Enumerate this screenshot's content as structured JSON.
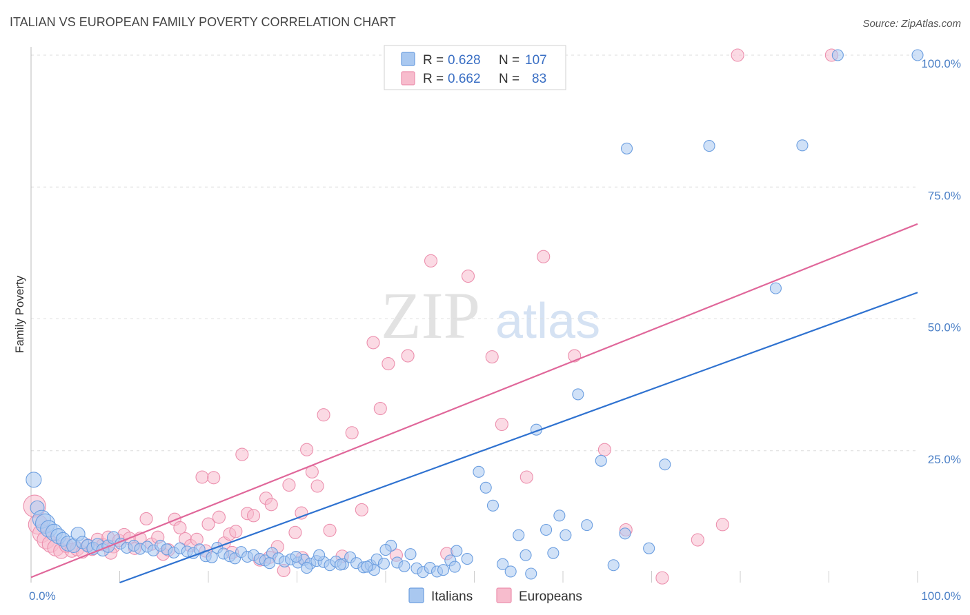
{
  "header": {
    "title": "ITALIAN VS EUROPEAN FAMILY POVERTY CORRELATION CHART",
    "source": "Source: ZipAtlas.com"
  },
  "watermark": {
    "zip": "ZIP",
    "atlas": "atlas"
  },
  "colors": {
    "italians_fill": "#a9c8f0",
    "italians_stroke": "#6b9ee0",
    "italians_line": "#2f72d0",
    "europeans_fill": "#f7bccd",
    "europeans_stroke": "#ec8fad",
    "europeans_line": "#e0679a",
    "grid": "#dcdcdc",
    "tick_label": "#4a7fc6"
  },
  "legend": {
    "rows": [
      {
        "r_label": "R =",
        "r_value": "0.628",
        "n_label": "N =",
        "n_value": "107"
      },
      {
        "r_label": "R =",
        "r_value": "0.662",
        "n_label": "N =",
        "n_value": "83"
      }
    ]
  },
  "bottom_legend": {
    "italians": "Italians",
    "europeans": "Europeans"
  },
  "chart_data": {
    "type": "scatter",
    "title": "ITALIAN VS EUROPEAN FAMILY POVERTY CORRELATION CHART",
    "xlabel": "",
    "ylabel": "Family Poverty",
    "xlim": [
      0,
      100
    ],
    "ylim": [
      0,
      100
    ],
    "x_tick_labels": [
      "0.0%",
      "100.0%"
    ],
    "y_ticks": [
      25,
      50,
      75,
      100
    ],
    "y_tick_labels": [
      "25.0%",
      "50.0%",
      "75.0%",
      "100.0%"
    ],
    "grid": true,
    "legend_position": "top-center",
    "series": [
      {
        "name": "Italians",
        "r": 0.628,
        "n": 107,
        "trend": {
          "x0": 10,
          "y0": 0,
          "x1": 100,
          "y1": 55
        },
        "points": [
          [
            0.3,
            19.5,
            11
          ],
          [
            0.7,
            14.2,
            10
          ],
          [
            1.2,
            12.0,
            13
          ],
          [
            1.6,
            11.2,
            14
          ],
          [
            2.0,
            10.2,
            12
          ],
          [
            2.6,
            9.5,
            12
          ],
          [
            3.1,
            8.8,
            11
          ],
          [
            3.6,
            8.2,
            10
          ],
          [
            4.2,
            7.4,
            11
          ],
          [
            4.8,
            7.0,
            10
          ],
          [
            5.3,
            9.2,
            10
          ],
          [
            5.8,
            7.6,
            9
          ],
          [
            6.4,
            7.0,
            9
          ],
          [
            7.0,
            6.5,
            9
          ],
          [
            7.5,
            7.2,
            9
          ],
          [
            8.1,
            6.2,
            9
          ],
          [
            8.7,
            6.9,
            9
          ],
          [
            9.3,
            8.5,
            9
          ],
          [
            10.1,
            7.4,
            8
          ],
          [
            10.8,
            6.6,
            8
          ],
          [
            11.6,
            7.0,
            8
          ],
          [
            12.3,
            6.4,
            8
          ],
          [
            13.1,
            6.8,
            8
          ],
          [
            13.8,
            6.1,
            8
          ],
          [
            14.6,
            7.0,
            8
          ],
          [
            15.3,
            6.3,
            8
          ],
          [
            16.1,
            5.7,
            8
          ],
          [
            16.8,
            6.5,
            8
          ],
          [
            17.6,
            5.9,
            8
          ],
          [
            18.3,
            5.6,
            8
          ],
          [
            19.0,
            6.3,
            8
          ],
          [
            19.7,
            5.0,
            8
          ],
          [
            20.4,
            4.8,
            8
          ],
          [
            21.0,
            6.6,
            8
          ],
          [
            21.7,
            5.5,
            8
          ],
          [
            22.4,
            5.0,
            8
          ],
          [
            23.0,
            4.6,
            8
          ],
          [
            23.7,
            5.8,
            8
          ],
          [
            24.4,
            4.9,
            8
          ],
          [
            25.1,
            5.2,
            8
          ],
          [
            25.8,
            4.5,
            8
          ],
          [
            26.4,
            4.2,
            8
          ],
          [
            27.2,
            5.6,
            8
          ],
          [
            27.9,
            4.6,
            8
          ],
          [
            28.6,
            4.0,
            8
          ],
          [
            29.3,
            4.4,
            8
          ],
          [
            30.1,
            3.8,
            8
          ],
          [
            30.8,
            4.3,
            8
          ],
          [
            31.5,
            3.6,
            8
          ],
          [
            32.2,
            4.1,
            8
          ],
          [
            33.0,
            3.9,
            8
          ],
          [
            33.7,
            3.3,
            8
          ],
          [
            34.4,
            4.0,
            8
          ],
          [
            35.2,
            3.5,
            8
          ],
          [
            36.0,
            4.8,
            8
          ],
          [
            36.7,
            3.7,
            8
          ],
          [
            37.5,
            2.9,
            8
          ],
          [
            38.3,
            3.3,
            8
          ],
          [
            39.0,
            4.4,
            8
          ],
          [
            39.8,
            3.6,
            8
          ],
          [
            40.6,
            7.0,
            8
          ],
          [
            41.3,
            3.8,
            8
          ],
          [
            42.1,
            3.1,
            8
          ],
          [
            42.8,
            5.4,
            8
          ],
          [
            43.5,
            2.7,
            8
          ],
          [
            44.2,
            2.0,
            8
          ],
          [
            45.0,
            2.8,
            8
          ],
          [
            45.8,
            2.1,
            8
          ],
          [
            46.5,
            2.4,
            8
          ],
          [
            47.3,
            4.2,
            8
          ],
          [
            48.0,
            6.0,
            8
          ],
          [
            32.5,
            5.2,
            8
          ],
          [
            34.9,
            3.4,
            8
          ],
          [
            31.1,
            2.8,
            8
          ],
          [
            38.7,
            2.4,
            8
          ],
          [
            40.0,
            6.2,
            8
          ],
          [
            47.8,
            3.0,
            8
          ],
          [
            49.2,
            4.5,
            8
          ],
          [
            50.5,
            21.0,
            8
          ],
          [
            51.3,
            18.0,
            8
          ],
          [
            52.1,
            14.6,
            8
          ],
          [
            53.2,
            3.5,
            8
          ],
          [
            54.1,
            2.1,
            8
          ],
          [
            55.0,
            9.0,
            8
          ],
          [
            55.8,
            5.2,
            8
          ],
          [
            56.4,
            1.7,
            8
          ],
          [
            57.0,
            29.0,
            8
          ],
          [
            58.1,
            10.0,
            8
          ],
          [
            58.9,
            5.6,
            8
          ],
          [
            59.6,
            12.7,
            8
          ],
          [
            60.3,
            9.0,
            8
          ],
          [
            61.7,
            35.7,
            8
          ],
          [
            62.7,
            10.9,
            8
          ],
          [
            64.3,
            23.1,
            8
          ],
          [
            65.7,
            3.3,
            8
          ],
          [
            67.0,
            9.3,
            8
          ],
          [
            67.2,
            82.3,
            8
          ],
          [
            69.7,
            6.5,
            8
          ],
          [
            71.5,
            22.4,
            8
          ],
          [
            76.5,
            82.8,
            8
          ],
          [
            84.0,
            55.8,
            8
          ],
          [
            87.0,
            82.9,
            8
          ],
          [
            91.0,
            100.0,
            8
          ],
          [
            100.0,
            100.0,
            8
          ],
          [
            37.9,
            3.0,
            8
          ],
          [
            26.9,
            3.7,
            8
          ],
          [
            29.9,
            4.9,
            8
          ]
        ]
      },
      {
        "name": "Europeans",
        "r": 0.662,
        "n": 83,
        "trend": {
          "x0": 0,
          "y0": 1,
          "x1": 100,
          "y1": 68
        },
        "points": [
          [
            0.4,
            14.5,
            16
          ],
          [
            0.8,
            11.0,
            14
          ],
          [
            1.2,
            9.3,
            13
          ],
          [
            1.7,
            8.1,
            13
          ],
          [
            2.2,
            7.3,
            12
          ],
          [
            2.8,
            6.6,
            12
          ],
          [
            3.4,
            6.0,
            11
          ],
          [
            4.0,
            7.0,
            10
          ],
          [
            4.6,
            6.1,
            10
          ],
          [
            5.2,
            6.4,
            10
          ],
          [
            5.8,
            5.8,
            9
          ],
          [
            6.4,
            7.1,
            9
          ],
          [
            6.9,
            6.3,
            9
          ],
          [
            7.5,
            8.2,
            9
          ],
          [
            8.1,
            7.2,
            9
          ],
          [
            8.7,
            8.6,
            9
          ],
          [
            9.3,
            6.8,
            9
          ],
          [
            9.9,
            8.0,
            9
          ],
          [
            10.5,
            9.1,
            9
          ],
          [
            11.1,
            8.4,
            9
          ],
          [
            11.7,
            6.5,
            9
          ],
          [
            12.3,
            8.4,
            9
          ],
          [
            13.0,
            12.1,
            9
          ],
          [
            13.6,
            7.3,
            9
          ],
          [
            14.3,
            8.6,
            9
          ],
          [
            14.9,
            5.4,
            9
          ],
          [
            15.5,
            6.2,
            9
          ],
          [
            16.2,
            12.0,
            9
          ],
          [
            16.8,
            10.4,
            9
          ],
          [
            17.4,
            8.3,
            9
          ],
          [
            18.0,
            7.0,
            9
          ],
          [
            18.7,
            8.2,
            9
          ],
          [
            19.3,
            20.0,
            9
          ],
          [
            20.0,
            11.1,
            9
          ],
          [
            20.6,
            19.9,
            9
          ],
          [
            21.2,
            12.4,
            9
          ],
          [
            21.8,
            7.5,
            9
          ],
          [
            22.4,
            9.2,
            9
          ],
          [
            23.1,
            9.7,
            9
          ],
          [
            23.8,
            24.3,
            9
          ],
          [
            24.4,
            13.1,
            9
          ],
          [
            25.1,
            12.7,
            9
          ],
          [
            25.8,
            4.3,
            9
          ],
          [
            26.5,
            16.0,
            9
          ],
          [
            27.1,
            14.8,
            9
          ],
          [
            27.8,
            6.8,
            9
          ],
          [
            28.5,
            2.3,
            9
          ],
          [
            29.1,
            18.5,
            9
          ],
          [
            29.8,
            9.5,
            9
          ],
          [
            30.5,
            13.2,
            9
          ],
          [
            31.1,
            25.2,
            9
          ],
          [
            31.7,
            21.0,
            9
          ],
          [
            32.3,
            18.3,
            9
          ],
          [
            33.0,
            31.8,
            9
          ],
          [
            33.7,
            9.9,
            9
          ],
          [
            35.1,
            5.0,
            9
          ],
          [
            36.2,
            28.4,
            9
          ],
          [
            37.3,
            13.8,
            9
          ],
          [
            38.6,
            45.5,
            9
          ],
          [
            39.4,
            33.0,
            9
          ],
          [
            40.3,
            41.5,
            9
          ],
          [
            41.2,
            5.2,
            9
          ],
          [
            42.5,
            43.0,
            9
          ],
          [
            45.1,
            61.0,
            9
          ],
          [
            46.9,
            5.5,
            9
          ],
          [
            49.3,
            58.1,
            9
          ],
          [
            52.0,
            42.8,
            9
          ],
          [
            53.1,
            30.0,
            9
          ],
          [
            55.9,
            20.0,
            9
          ],
          [
            57.8,
            61.8,
            9
          ],
          [
            61.3,
            43.0,
            9
          ],
          [
            64.7,
            25.2,
            9
          ],
          [
            67.1,
            10.0,
            9
          ],
          [
            71.2,
            0.9,
            9
          ],
          [
            75.2,
            8.1,
            9
          ],
          [
            78.0,
            11.0,
            9
          ],
          [
            79.7,
            100.0,
            9
          ],
          [
            90.3,
            100.0,
            9
          ],
          [
            9.0,
            5.6,
            9
          ],
          [
            19.7,
            6.0,
            9
          ],
          [
            22.7,
            5.7,
            9
          ],
          [
            26.9,
            4.8,
            9
          ],
          [
            30.6,
            4.7,
            9
          ]
        ]
      }
    ]
  }
}
